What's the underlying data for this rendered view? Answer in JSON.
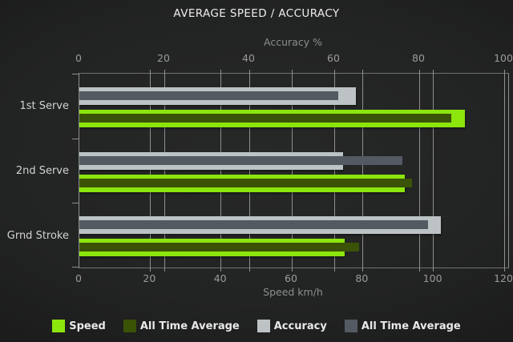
{
  "chart_data": {
    "type": "bar",
    "orientation": "horizontal",
    "title": "AVERAGE SPEED / ACCURACY",
    "categories": [
      "1st Serve",
      "2nd Serve",
      "Grnd Stroke"
    ],
    "top_axis": {
      "label": "Accuracy %",
      "min": 0,
      "max": 100,
      "ticks": [
        0,
        20,
        40,
        60,
        80,
        100
      ]
    },
    "bottom_axis": {
      "label": "Speed km/h",
      "min": 0,
      "max": 120,
      "ticks": [
        0,
        20,
        40,
        60,
        80,
        100,
        120
      ]
    },
    "series": [
      {
        "name": "Speed",
        "axis": "bottom",
        "role": "outer",
        "color": "#8CE50D",
        "values": [
          109,
          92,
          75
        ]
      },
      {
        "name": "All Time Average",
        "axis": "bottom",
        "role": "inner",
        "color": "#3A5307",
        "values": [
          105,
          94,
          79
        ]
      },
      {
        "name": "Accuracy",
        "axis": "top",
        "role": "outer",
        "color": "#BDC3C5",
        "values": [
          65,
          62,
          85
        ]
      },
      {
        "name": "All Time Average",
        "axis": "top",
        "role": "inner",
        "color": "#545A62",
        "values": [
          61,
          76,
          82
        ]
      }
    ],
    "legend": {
      "position": "bottom",
      "entries": [
        "Speed",
        "All Time Average",
        "Accuracy",
        "All Time Average"
      ]
    },
    "grid": true,
    "colors": {
      "background": "#222323",
      "gridline": "#8d9090",
      "title_text": "#ededed",
      "axis_text": "#9b9b9b",
      "legend_text": "#e9e9e9"
    }
  }
}
